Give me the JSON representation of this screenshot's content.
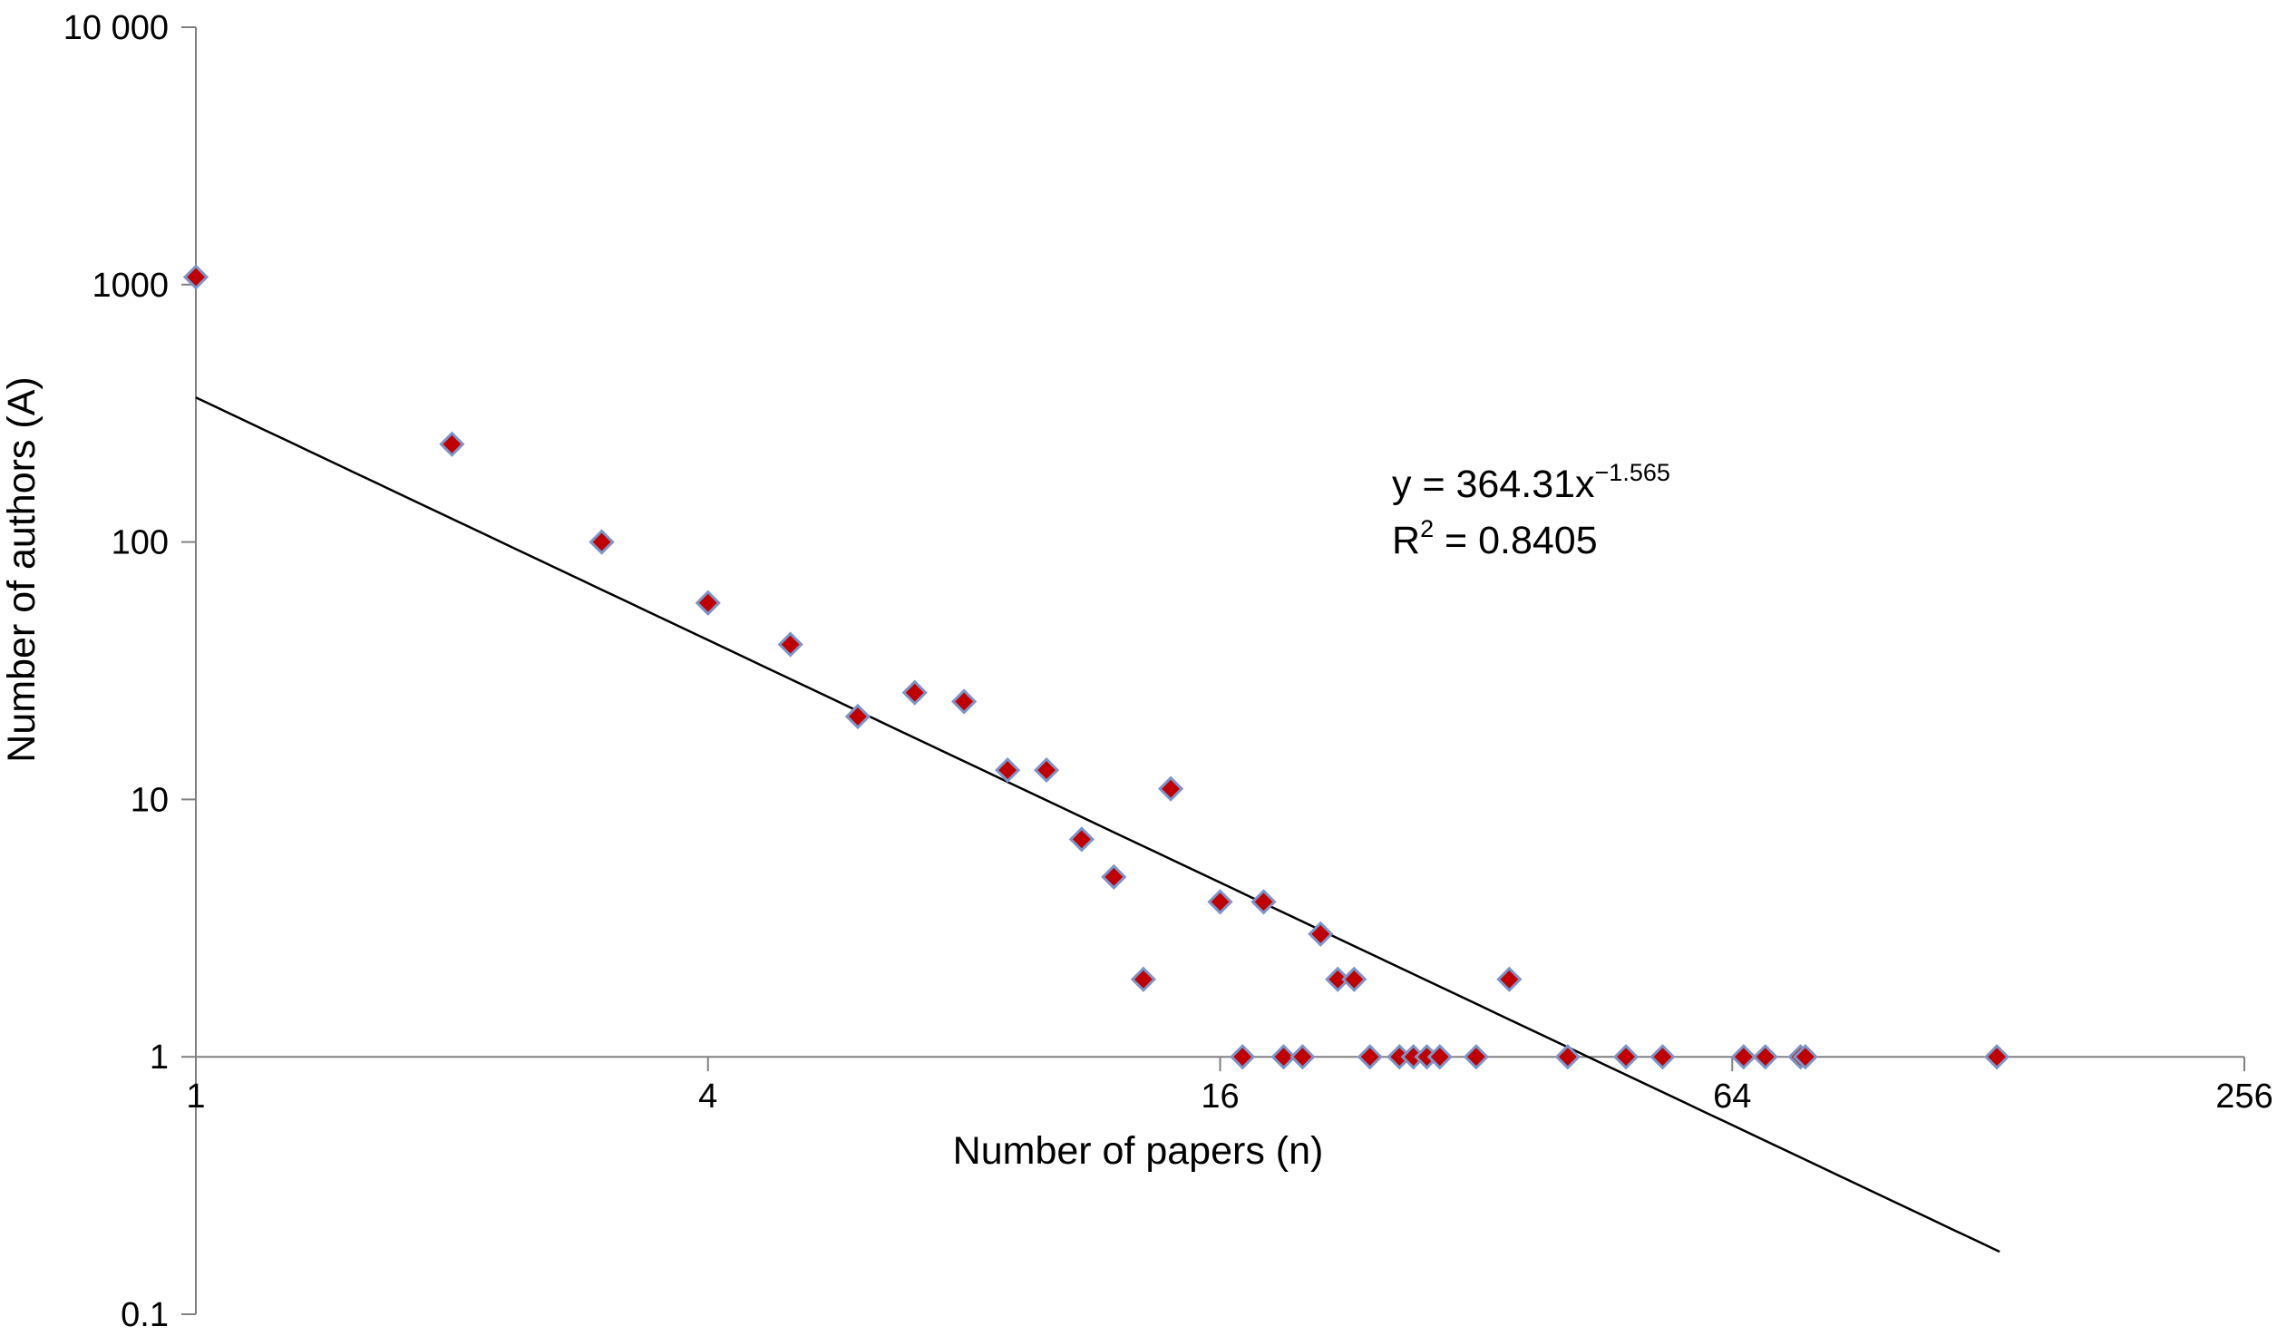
{
  "chart_data": {
    "type": "scatter",
    "title": "",
    "xlabel": "Number of papers (n)",
    "ylabel": "Number of authors (A)",
    "x_scale": "log2",
    "y_scale": "log10",
    "xlim": [
      1,
      256
    ],
    "ylim": [
      0.1,
      10000
    ],
    "x_ticks": [
      1,
      4,
      16,
      64,
      256
    ],
    "x_tick_labels": [
      "1",
      "4",
      "16",
      "64",
      "256"
    ],
    "y_ticks": [
      0.1,
      1,
      10,
      100,
      1000,
      10000
    ],
    "y_tick_labels": [
      "0.1",
      "1",
      "10",
      "100",
      "1000",
      "10 000"
    ],
    "grid": false,
    "marker": {
      "shape": "diamond",
      "fill": "#c00000",
      "stroke": "#7b95c9"
    },
    "trendline": {
      "type": "power",
      "a": 364.31,
      "b": -1.565,
      "x_range": [
        1,
        132
      ],
      "color": "#000000",
      "equation_prefix": "y = 364.31x",
      "equation_exponent": "−1.565",
      "r2_prefix": "R",
      "r2_exponent": "2",
      "r2_suffix": " = 0.8405"
    },
    "points": [
      {
        "x": 1,
        "y": 1070
      },
      {
        "x": 2,
        "y": 240
      },
      {
        "x": 3,
        "y": 100
      },
      {
        "x": 4,
        "y": 58
      },
      {
        "x": 5,
        "y": 40
      },
      {
        "x": 6,
        "y": 21
      },
      {
        "x": 7,
        "y": 26
      },
      {
        "x": 8,
        "y": 24
      },
      {
        "x": 9,
        "y": 13
      },
      {
        "x": 10,
        "y": 13
      },
      {
        "x": 11,
        "y": 7
      },
      {
        "x": 12,
        "y": 5
      },
      {
        "x": 13,
        "y": 2
      },
      {
        "x": 14,
        "y": 11
      },
      {
        "x": 16,
        "y": 4
      },
      {
        "x": 17,
        "y": 1
      },
      {
        "x": 18,
        "y": 4
      },
      {
        "x": 19,
        "y": 1
      },
      {
        "x": 20,
        "y": 1
      },
      {
        "x": 21,
        "y": 3
      },
      {
        "x": 22,
        "y": 2
      },
      {
        "x": 23,
        "y": 2
      },
      {
        "x": 24,
        "y": 1
      },
      {
        "x": 26,
        "y": 1
      },
      {
        "x": 27,
        "y": 1
      },
      {
        "x": 28,
        "y": 1
      },
      {
        "x": 29,
        "y": 1
      },
      {
        "x": 32,
        "y": 1
      },
      {
        "x": 35,
        "y": 2
      },
      {
        "x": 41,
        "y": 1
      },
      {
        "x": 48,
        "y": 1
      },
      {
        "x": 53,
        "y": 1
      },
      {
        "x": 66,
        "y": 1
      },
      {
        "x": 70,
        "y": 1
      },
      {
        "x": 77,
        "y": 1
      },
      {
        "x": 78,
        "y": 1
      },
      {
        "x": 131,
        "y": 1
      }
    ]
  }
}
